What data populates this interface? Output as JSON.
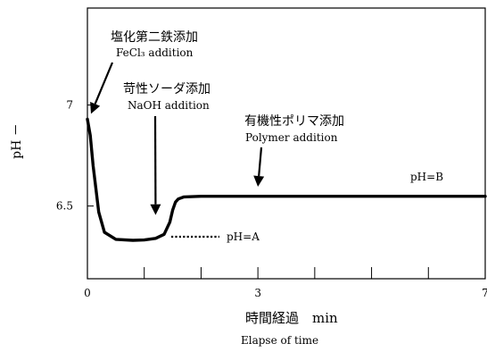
{
  "chart_data": {
    "type": "line",
    "xlabel": "時間経過　min",
    "xlabel_en": "Elapse of time",
    "ylabel": "pH －",
    "x_ticks": [
      "0",
      "3",
      "7"
    ],
    "y_ticks": [
      "7",
      "6.5"
    ],
    "xlim": [
      0,
      7
    ],
    "ylim": [
      6.14,
      7.48
    ],
    "grid": false,
    "series": [
      {
        "x": [
          0,
          0.05,
          0.1,
          0.2,
          0.3,
          0.5,
          0.8,
          1.0,
          1.2,
          1.35,
          1.45,
          1.5,
          1.55,
          1.6,
          1.7,
          2.0,
          2.5,
          3.0,
          5.0,
          7.0
        ],
        "y": [
          6.93,
          6.85,
          6.7,
          6.47,
          6.37,
          6.335,
          6.33,
          6.332,
          6.34,
          6.36,
          6.42,
          6.48,
          6.52,
          6.535,
          6.545,
          6.548,
          6.548,
          6.548,
          6.548,
          6.548
        ]
      }
    ],
    "annotations": [
      {
        "id": "fecl3",
        "jp": "塩化第二鉄添加",
        "en": "FeCl₃ addition",
        "x": 0.0,
        "y": 6.93
      },
      {
        "id": "naoh",
        "jp": "苛性ソーダ添加",
        "en": "NaOH addition",
        "x": 1.2,
        "y": 6.42
      },
      {
        "id": "polymer",
        "jp": "有機性ポリマ添加",
        "en": "Polymer addition",
        "x": 3.0,
        "y": 6.56
      }
    ],
    "level_labels": [
      {
        "id": "ph-a",
        "text": "pH=A"
      },
      {
        "id": "ph-b",
        "text": "pH=B"
      }
    ]
  }
}
